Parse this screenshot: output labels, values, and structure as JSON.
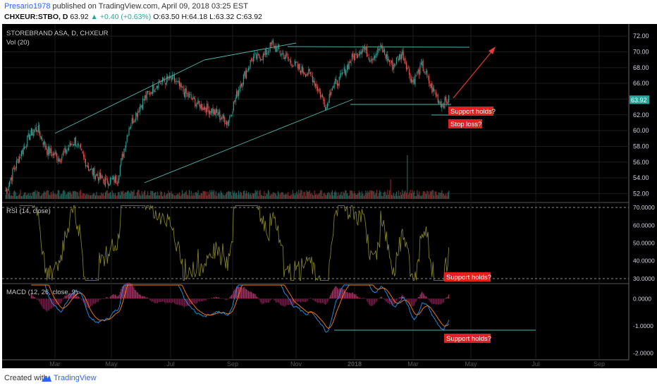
{
  "header": {
    "publisher": "Presario1978",
    "published_text": "published on TradingView.com, April 09, 2018 03:25 EST",
    "symbol": "CHXEUR:STBO, D",
    "last": "63.92",
    "change": "+0.40 (+0.63%)",
    "ohlc": "O:63.50 H:64.18 L:63.32 C:63.92"
  },
  "footer": {
    "created": "Created with",
    "brand": "TradingView"
  },
  "colors": {
    "bg": "#000000",
    "up": "#26a69a",
    "down": "#ef5350",
    "trend": "#4db6ac",
    "rsi": "#8d8a2a",
    "macd": "#2196f3",
    "signal": "#ff7f0e",
    "label_bg": "#e32020"
  },
  "chart_data": [
    {
      "type": "candlestick",
      "title": "STOREBRAND ASA, D, CHXEUR",
      "subtitle": "Vol (20)",
      "x_ticks": [
        "Mar",
        "May",
        "Jul",
        "Sep",
        "Nov",
        "2018",
        "Mar",
        "May",
        "Jul",
        "Sep"
      ],
      "y_ticks": [
        "72.00",
        "70.00",
        "68.00",
        "66.00",
        "64.00",
        "62.00",
        "60.00",
        "58.00",
        "56.00",
        "54.00",
        "52.00"
      ],
      "ylim": [
        51.5,
        73
      ],
      "last_price": "63.92",
      "anchors": [
        [
          0,
          52.3
        ],
        [
          10,
          55.6
        ],
        [
          25,
          59.6
        ],
        [
          32,
          60.3
        ],
        [
          42,
          57.5
        ],
        [
          55,
          56.5
        ],
        [
          70,
          58.8
        ],
        [
          85,
          55.0
        ],
        [
          100,
          53.6
        ],
        [
          113,
          53.8
        ],
        [
          125,
          60.5
        ],
        [
          140,
          64.0
        ],
        [
          155,
          66.2
        ],
        [
          170,
          66.5
        ],
        [
          180,
          65.0
        ],
        [
          195,
          63.3
        ],
        [
          210,
          62.5
        ],
        [
          225,
          61.1
        ],
        [
          238,
          66.0
        ],
        [
          250,
          69.2
        ],
        [
          262,
          69.5
        ],
        [
          270,
          71.0
        ],
        [
          285,
          69.2
        ],
        [
          298,
          67.8
        ],
        [
          310,
          67.0
        ],
        [
          325,
          63.0
        ],
        [
          330,
          65.5
        ],
        [
          338,
          66.4
        ],
        [
          350,
          69.0
        ],
        [
          362,
          70.6
        ],
        [
          370,
          69.2
        ],
        [
          380,
          70.5
        ],
        [
          392,
          68.2
        ],
        [
          402,
          69.9
        ],
        [
          412,
          66.2
        ],
        [
          422,
          68.2
        ],
        [
          431,
          65.5
        ],
        [
          442,
          63.3
        ],
        [
          449,
          63.9
        ]
      ],
      "annotations": [
        "Support holds?",
        "Stop loss?"
      ]
    },
    {
      "type": "line",
      "title": "RSI (14, close)",
      "y_ticks": [
        "70.0000",
        "60.0000",
        "50.0000",
        "40.0000",
        "30.0000"
      ],
      "ylim": [
        28,
        72
      ],
      "levels": [
        70,
        30
      ],
      "annotations": [
        "Support holds?"
      ]
    },
    {
      "type": "line",
      "title": "MACD (12, 26, close, 9)",
      "y_ticks": [
        "0.0000",
        "-1.0000",
        "-2.0000"
      ],
      "ylim": [
        -2.2,
        0.5
      ],
      "annotations": [
        "Support holds?"
      ]
    }
  ]
}
